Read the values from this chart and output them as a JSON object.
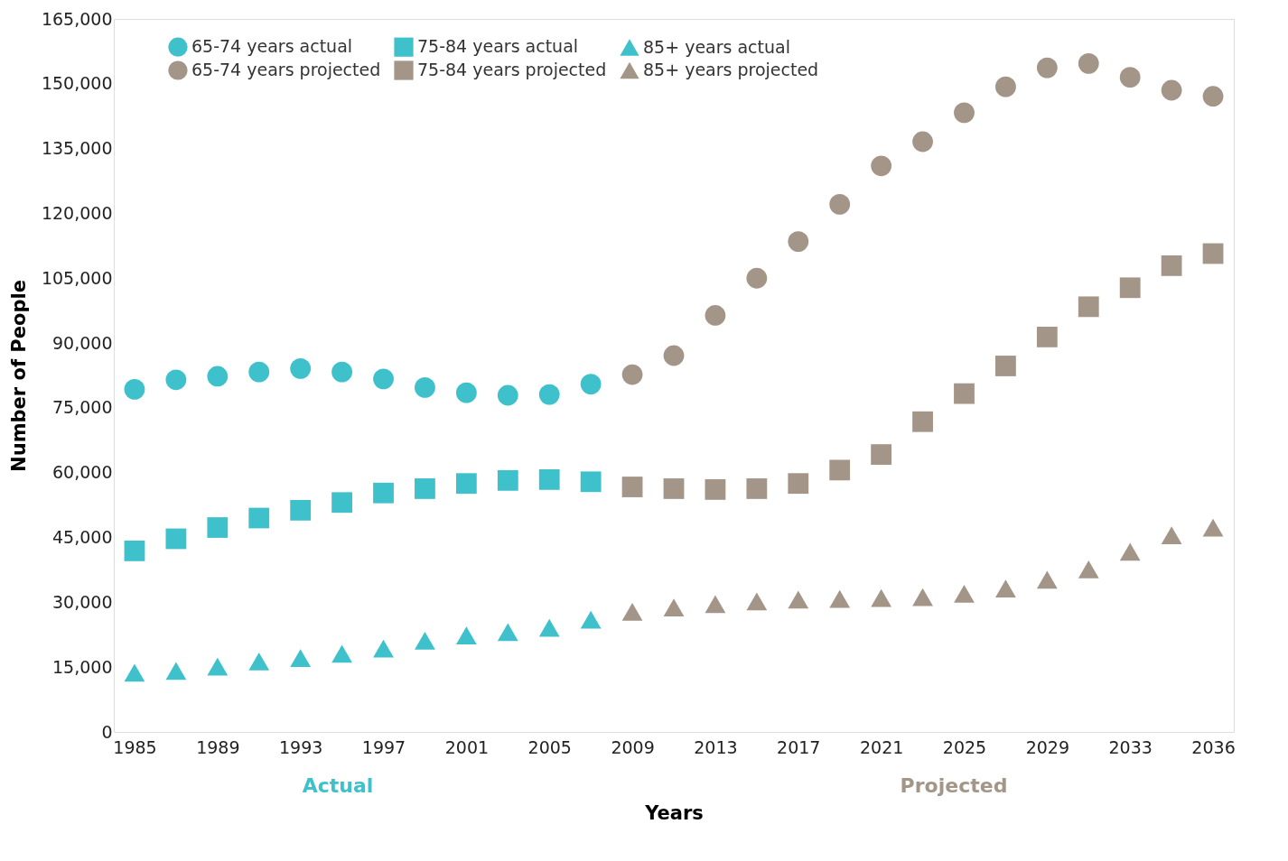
{
  "chart_data": {
    "type": "scatter",
    "xlabel": "Years",
    "ylabel": "Number of People",
    "categories": [
      "1985",
      null,
      "1989",
      null,
      "1993",
      null,
      "1997",
      null,
      "2001",
      null,
      "2005",
      null,
      "2009",
      null,
      "2013",
      null,
      "2017",
      null,
      "2021",
      null,
      "2025",
      null,
      "2029",
      null,
      "2033",
      null,
      "2036"
    ],
    "ylim": [
      0,
      165000
    ],
    "yticks": [
      0,
      {
        "value": 15000,
        "label": "15,000"
      },
      {
        "value": 30000,
        "label": "30,000"
      },
      {
        "value": 45000,
        "label": "45,000"
      },
      {
        "value": 60000,
        "label": "60,000"
      },
      {
        "value": 75000,
        "label": "75,000"
      },
      {
        "value": 90000,
        "label": "90,000"
      },
      {
        "value": 105000,
        "label": "105,000"
      },
      {
        "value": 120000,
        "label": "120,000"
      },
      {
        "value": 135000,
        "label": "135,000"
      },
      {
        "value": 150000,
        "label": "150,000"
      },
      {
        "value": 165000,
        "label": "165,000"
      }
    ],
    "grid": false,
    "legend": "top left",
    "series": [
      {
        "name": "65-74 years actual",
        "color": "#3fc1cc",
        "marker": "circle",
        "values": [
          79300,
          81500,
          82300,
          83300,
          84100,
          83300,
          81700,
          79700,
          78500,
          77900,
          78100,
          80500,
          null,
          null,
          null,
          null,
          null,
          null,
          null,
          null,
          null,
          null,
          null,
          null,
          null,
          null,
          null
        ]
      },
      {
        "name": "65-74 years projected",
        "color": "#a39587",
        "marker": "circle",
        "values": [
          null,
          null,
          null,
          null,
          null,
          null,
          null,
          null,
          null,
          null,
          null,
          null,
          82700,
          87100,
          96400,
          105000,
          113500,
          122100,
          131000,
          136600,
          143300,
          149300,
          153700,
          154700,
          151500,
          148500,
          147100
        ]
      },
      {
        "name": "75-84 years actual",
        "color": "#3fc1cc",
        "marker": "square",
        "values": [
          41900,
          44700,
          47300,
          49500,
          51300,
          53100,
          55300,
          56300,
          57500,
          58200,
          58400,
          57900,
          null,
          null,
          null,
          null,
          null,
          null,
          null,
          null,
          null,
          null,
          null,
          null,
          null,
          null,
          null
        ]
      },
      {
        "name": "75-84 years projected",
        "color": "#a39587",
        "marker": "square",
        "values": [
          null,
          null,
          null,
          null,
          null,
          null,
          null,
          null,
          null,
          null,
          null,
          null,
          56700,
          56300,
          56100,
          56300,
          57500,
          60600,
          64200,
          71800,
          78300,
          84700,
          91400,
          98400,
          102800,
          107900,
          110700
        ]
      },
      {
        "name": "85+ years actual",
        "color": "#3fc1cc",
        "marker": "triangle",
        "values": [
          13700,
          14100,
          15100,
          16300,
          17100,
          18100,
          19300,
          21100,
          22300,
          23100,
          24100,
          26000,
          null,
          null,
          null,
          null,
          null,
          null,
          null,
          null,
          null,
          null,
          null,
          null,
          null,
          null,
          null
        ]
      },
      {
        "name": "85+ years projected",
        "color": "#a39587",
        "marker": "triangle",
        "values": [
          null,
          null,
          null,
          null,
          null,
          null,
          null,
          null,
          null,
          null,
          null,
          null,
          27800,
          28800,
          29600,
          30200,
          30600,
          30800,
          31000,
          31200,
          32000,
          33200,
          35200,
          37600,
          41700,
          45500,
          47300
        ]
      }
    ],
    "annotations": [
      "Actual",
      "Projected"
    ]
  }
}
